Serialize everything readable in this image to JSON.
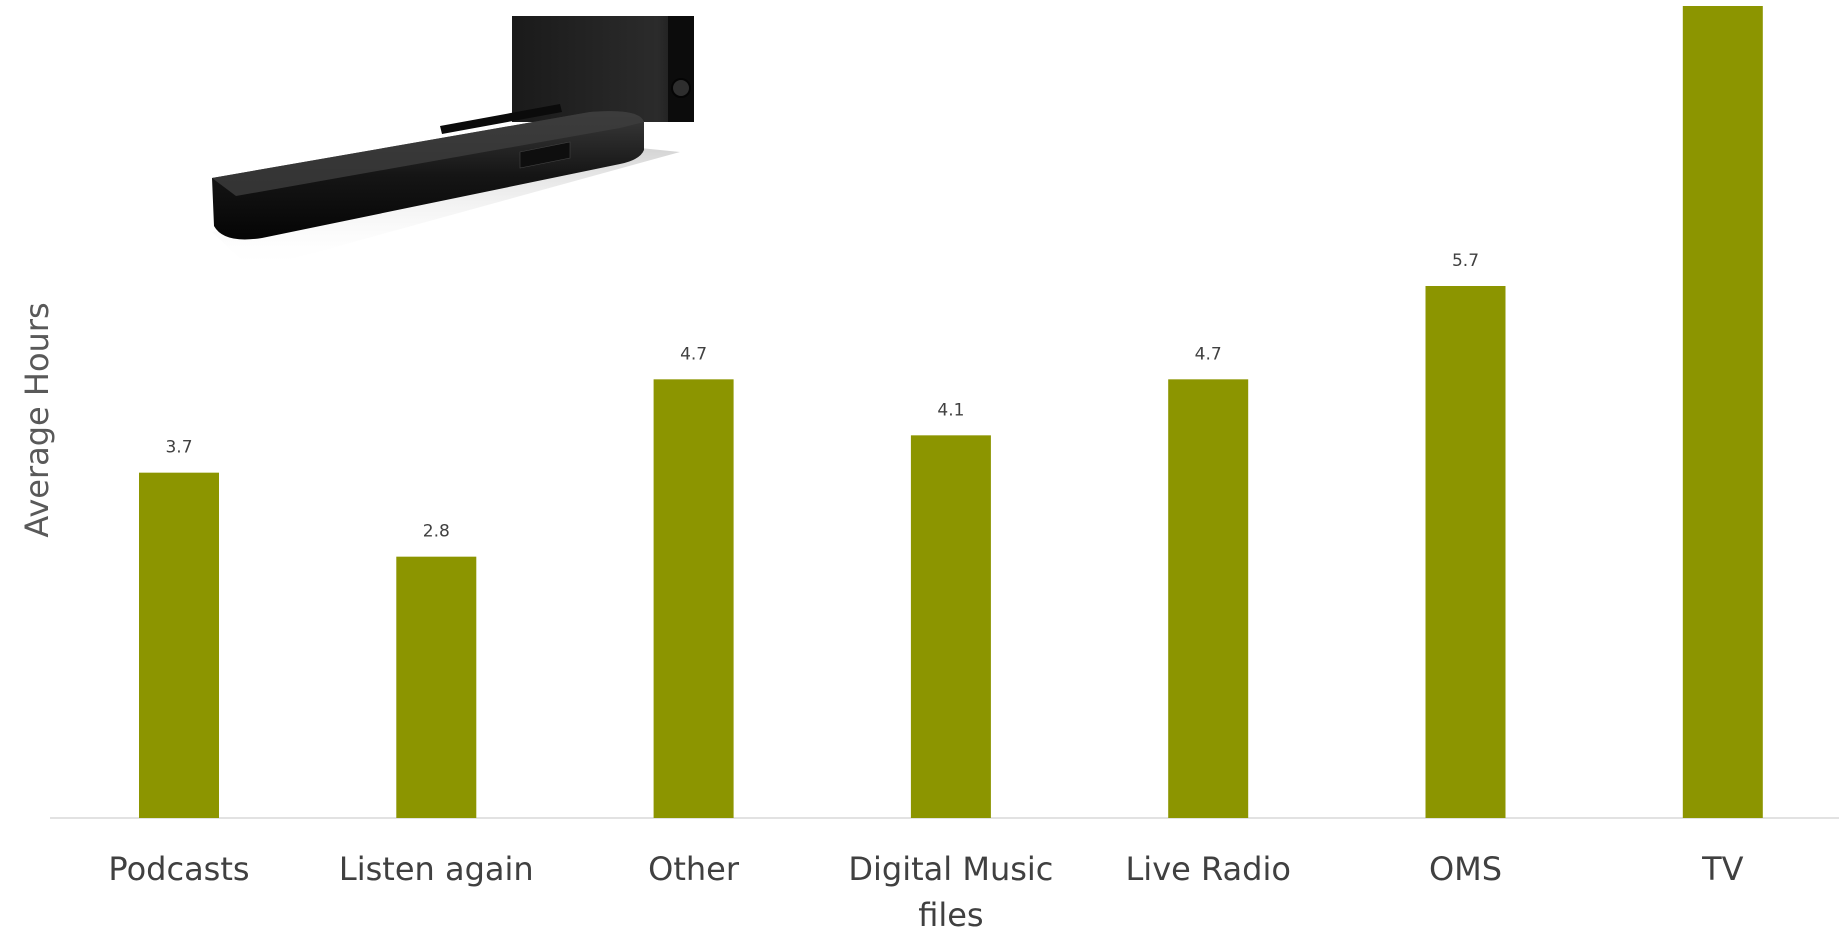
{
  "chart_data": {
    "type": "bar",
    "ylabel": "Average Hours",
    "categories": [
      [
        "Podcasts"
      ],
      [
        "Listen again"
      ],
      [
        "Other"
      ],
      [
        "Digital Music",
        "files"
      ],
      [
        "Live Radio"
      ],
      [
        "OMS"
      ],
      [
        "TV"
      ]
    ],
    "values": [
      3.7,
      2.8,
      4.7,
      4.1,
      4.7,
      5.7,
      8.7
    ],
    "data_labels": [
      "3.7",
      "2.8",
      "4.7",
      "4.1",
      "4.7",
      "5.7",
      ""
    ],
    "ylim": [
      0,
      8.7
    ],
    "grid": false,
    "legend": "none",
    "bar_color": "#8c9500"
  },
  "image": {
    "subject": "soundbar-speaker-photo"
  }
}
